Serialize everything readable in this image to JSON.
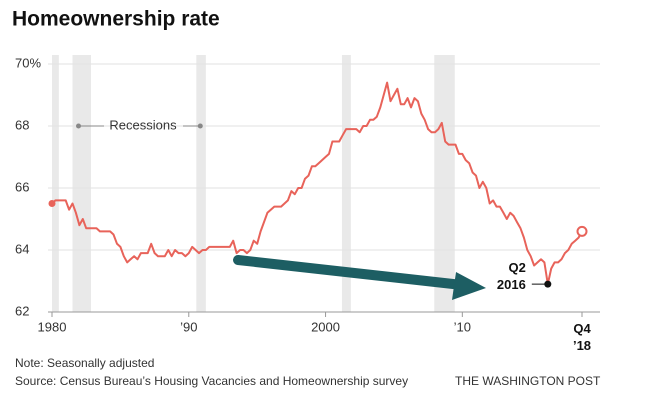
{
  "chart_data": {
    "type": "line",
    "title": "Homeownership rate",
    "note": "Note: Seasonally adjusted",
    "source": "Source: Census Bureau’s Housing Vacancies and Homeownership survey",
    "credit": "THE WASHINGTON POST",
    "recession_label": "Recessions",
    "recessions": [
      [
        1980,
        1980.5
      ],
      [
        1981.5,
        1982.85
      ],
      [
        1990.55,
        1991.25
      ],
      [
        2001.2,
        2001.85
      ],
      [
        2007.95,
        2009.45
      ]
    ],
    "callout": {
      "label": "Q2 2016",
      "x": 2016.25,
      "y": 62.9
    },
    "xlim": [
      1980,
      2018.75
    ],
    "ylim": [
      62,
      70
    ],
    "xticks": [
      1980,
      {
        "value": 1990,
        "label": "’90"
      },
      2000,
      {
        "value": 2010,
        "label": "’10"
      },
      {
        "value": 2018.75,
        "label": "Q4 ’18"
      }
    ],
    "yticks": [
      62,
      64,
      66,
      68,
      {
        "value": 70,
        "label": "70%"
      }
    ],
    "grid": true,
    "x": [
      1980,
      1980.25,
      1980.5,
      1980.75,
      1981,
      1981.25,
      1981.5,
      1981.75,
      1982,
      1982.25,
      1982.5,
      1982.75,
      1983,
      1983.25,
      1983.5,
      1983.75,
      1984,
      1984.25,
      1984.5,
      1984.75,
      1985,
      1985.25,
      1985.5,
      1985.75,
      1986,
      1986.25,
      1986.5,
      1986.75,
      1987,
      1987.25,
      1987.5,
      1987.75,
      1988,
      1988.25,
      1988.5,
      1988.75,
      1989,
      1989.25,
      1989.5,
      1989.75,
      1990,
      1990.25,
      1990.5,
      1990.75,
      1991,
      1991.25,
      1991.5,
      1991.75,
      1992,
      1992.25,
      1992.5,
      1992.75,
      1993,
      1993.25,
      1993.5,
      1993.75,
      1994,
      1994.25,
      1994.5,
      1994.75,
      1995,
      1995.25,
      1995.5,
      1995.75,
      1996,
      1996.25,
      1996.5,
      1996.75,
      1997,
      1997.25,
      1997.5,
      1997.75,
      1998,
      1998.25,
      1998.5,
      1998.75,
      1999,
      1999.25,
      1999.5,
      1999.75,
      2000,
      2000.25,
      2000.5,
      2000.75,
      2001,
      2001.25,
      2001.5,
      2001.75,
      2002,
      2002.25,
      2002.5,
      2002.75,
      2003,
      2003.25,
      2003.5,
      2003.75,
      2004,
      2004.25,
      2004.5,
      2004.75,
      2005,
      2005.25,
      2005.5,
      2005.75,
      2006,
      2006.25,
      2006.5,
      2006.75,
      2007,
      2007.25,
      2007.5,
      2007.75,
      2008,
      2008.25,
      2008.5,
      2008.75,
      2009,
      2009.25,
      2009.5,
      2009.75,
      2010,
      2010.25,
      2010.5,
      2010.75,
      2011,
      2011.25,
      2011.5,
      2011.75,
      2012,
      2012.25,
      2012.5,
      2012.75,
      2013,
      2013.25,
      2013.5,
      2013.75,
      2014,
      2014.25,
      2014.5,
      2014.75,
      2015,
      2015.25,
      2015.5,
      2015.75,
      2016,
      2016.25,
      2016.5,
      2016.75,
      2017,
      2017.25,
      2017.5,
      2017.75,
      2018,
      2018.25,
      2018.5,
      2018.75
    ],
    "series": [
      {
        "name": "Homeownership rate",
        "color": "#e8635a",
        "values": [
          65.5,
          65.6,
          65.6,
          65.6,
          65.6,
          65.3,
          65.5,
          65.2,
          64.8,
          65.0,
          64.7,
          64.7,
          64.7,
          64.7,
          64.6,
          64.6,
          64.6,
          64.6,
          64.5,
          64.2,
          64.1,
          63.8,
          63.6,
          63.7,
          63.8,
          63.7,
          63.9,
          63.9,
          63.9,
          64.2,
          63.9,
          63.8,
          63.8,
          63.8,
          64.0,
          63.8,
          64.0,
          63.9,
          63.9,
          63.8,
          63.9,
          64.1,
          64.0,
          63.9,
          64.0,
          64.0,
          64.1,
          64.1,
          64.1,
          64.1,
          64.1,
          64.1,
          64.1,
          64.3,
          63.9,
          64.0,
          64.0,
          63.9,
          64.0,
          64.3,
          64.2,
          64.6,
          64.9,
          65.2,
          65.3,
          65.4,
          65.4,
          65.4,
          65.5,
          65.6,
          65.9,
          65.8,
          66.0,
          66.0,
          66.3,
          66.4,
          66.7,
          66.7,
          66.8,
          66.9,
          67.0,
          67.1,
          67.5,
          67.5,
          67.5,
          67.7,
          67.9,
          67.9,
          67.9,
          67.9,
          67.8,
          68.0,
          68.0,
          68.2,
          68.2,
          68.3,
          68.6,
          69.0,
          69.4,
          68.8,
          69.0,
          69.2,
          68.7,
          68.7,
          68.9,
          68.6,
          68.9,
          68.8,
          68.4,
          68.2,
          67.9,
          67.8,
          67.8,
          67.9,
          68.1,
          67.5,
          67.4,
          67.4,
          67.4,
          67.1,
          67.1,
          66.9,
          66.8,
          66.5,
          66.4,
          66.0,
          66.2,
          66.0,
          65.5,
          65.6,
          65.4,
          65.4,
          65.2,
          65.0,
          65.2,
          65.1,
          64.9,
          64.7,
          64.4,
          64.0,
          63.8,
          63.5,
          63.6,
          63.7,
          63.6,
          62.9,
          63.4,
          63.6,
          63.6,
          63.7,
          63.9,
          64.0,
          64.2,
          64.3,
          64.4,
          64.6
        ]
      }
    ]
  }
}
